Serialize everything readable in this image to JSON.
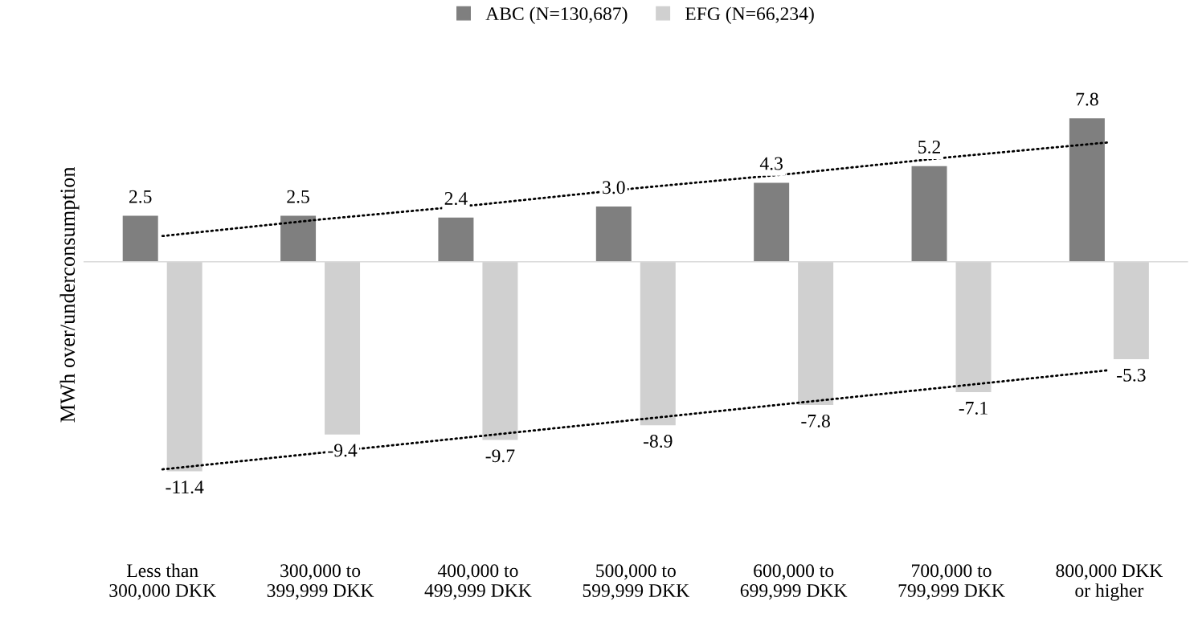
{
  "chart_data": {
    "type": "bar",
    "ylabel": "MWh over/underconsumption",
    "categories": [
      "Less than\n300,000 DKK",
      "300,000 to\n399,999 DKK",
      "400,000 to\n499,999 DKK",
      "500,000 to\n599,999 DKK",
      "600,000 to\n699,999 DKK",
      "700,000 to\n799,999 DKK",
      "800,000 DKK\nor higher"
    ],
    "series": [
      {
        "name": "ABC (N=130,687)",
        "color": "#7f7f7f",
        "values": [
          2.5,
          2.5,
          2.4,
          3.0,
          4.3,
          5.2,
          7.8
        ],
        "value_labels": [
          "2.5",
          "2.5",
          "2.4",
          "3.0",
          "4.3",
          "5.2",
          "7.8"
        ]
      },
      {
        "name": "EFG (N=66,234)",
        "color": "#d0d0d0",
        "values": [
          -11.4,
          -9.4,
          -9.7,
          -8.9,
          -7.8,
          -7.1,
          -5.3
        ],
        "value_labels": [
          "-11.4",
          "-9.4",
          "-9.7",
          "-8.9",
          "-7.8",
          "-7.1",
          "-5.3"
        ]
      },
      {
        "type": "line",
        "color": "#000000",
        "line_style": "dotted",
        "values": [
          1.4,
          2.3,
          3.1,
          4.0,
          4.8,
          5.7,
          6.5
        ]
      },
      {
        "type": "line",
        "color": "#000000",
        "line_style": "dotted",
        "values": [
          -11.3,
          -10.4,
          -9.5,
          -8.6,
          -7.7,
          -6.8,
          -5.9
        ]
      }
    ],
    "legend": "top"
  }
}
